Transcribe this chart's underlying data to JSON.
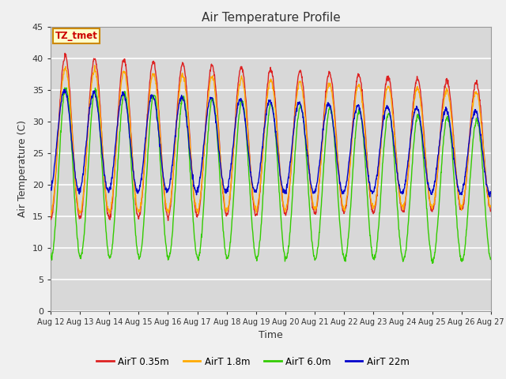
{
  "title": "Air Temperature Profile",
  "xlabel": "Time",
  "ylabel": "Air Temperature (C)",
  "ylim": [
    0,
    45
  ],
  "bg_outer": "#e8e8e8",
  "bg_plot": "#e0e0e0",
  "grid_color": "#ffffff",
  "annotation_text": "TZ_tmet",
  "annotation_bg": "#ffffcc",
  "annotation_border": "#cc8800",
  "annotation_text_color": "#cc0000",
  "colors": {
    "r": "#dd2222",
    "o": "#ffaa00",
    "g": "#33cc00",
    "b": "#0000cc"
  },
  "xtick_labels": [
    "Aug 12",
    "Aug 13",
    "Aug 14",
    "Aug 15",
    "Aug 16",
    "Aug 17",
    "Aug 18",
    "Aug 19",
    "Aug 20",
    "Aug 21",
    "Aug 22",
    "Aug 23",
    "Aug 24",
    "Aug 25",
    "Aug 26",
    "Aug 27"
  ],
  "ytick_vals": [
    0,
    5,
    10,
    15,
    20,
    25,
    30,
    35,
    40,
    45
  ],
  "n_days": 15,
  "pts_per_day": 96
}
